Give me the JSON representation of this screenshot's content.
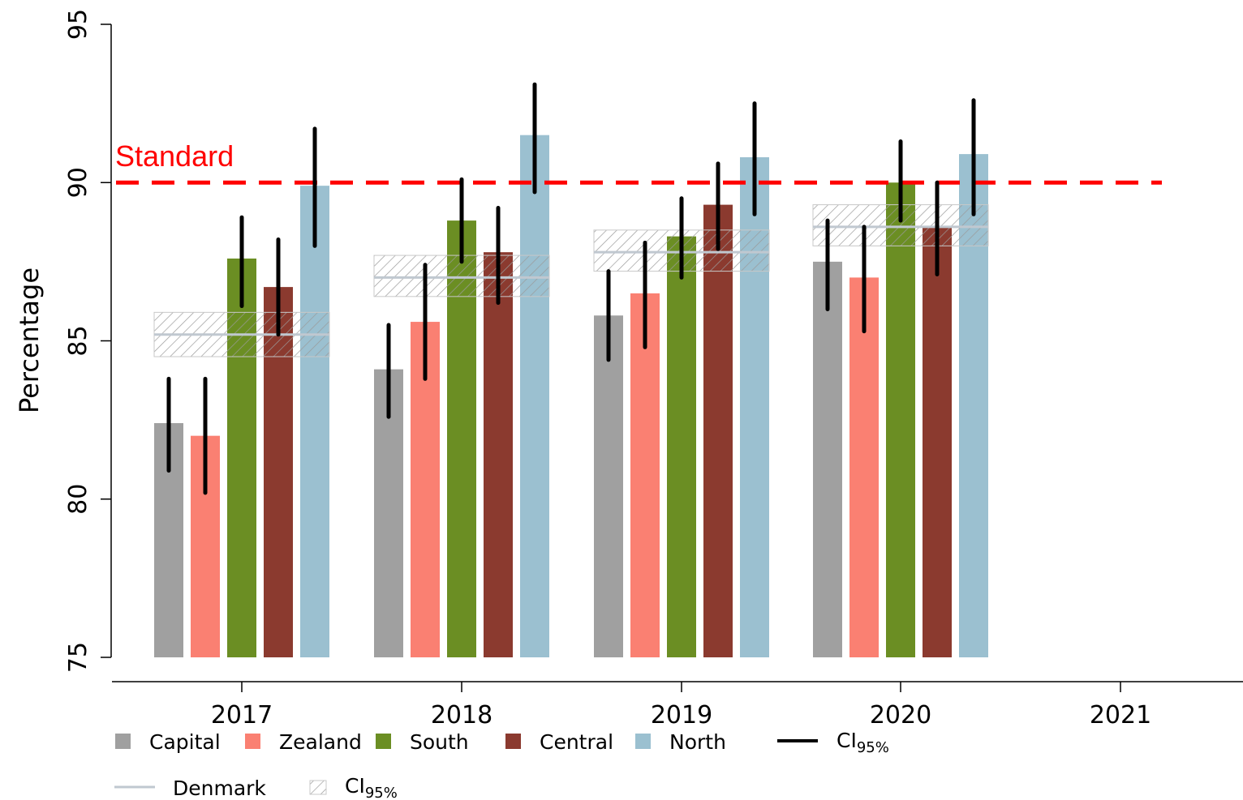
{
  "chart_data": {
    "type": "bar",
    "categories": [
      "2017",
      "2018",
      "2019",
      "2020",
      "2021"
    ],
    "ylabel": "Percentage",
    "xlabel": "",
    "ylim": [
      75,
      95
    ],
    "yticks": [
      75,
      80,
      85,
      90,
      95
    ],
    "series": [
      {
        "name": "Capital",
        "color": "#a0a0a0",
        "values": [
          82.4,
          84.1,
          85.8,
          87.5,
          null
        ],
        "ci_low": [
          80.9,
          82.6,
          84.4,
          86.0,
          null
        ],
        "ci_high": [
          83.8,
          85.5,
          87.2,
          88.8,
          null
        ]
      },
      {
        "name": "Zealand",
        "color": "#fa8072",
        "values": [
          82.0,
          85.6,
          86.5,
          87.0,
          null
        ],
        "ci_low": [
          80.2,
          83.8,
          84.8,
          85.3,
          null
        ],
        "ci_high": [
          83.8,
          87.4,
          88.1,
          88.6,
          null
        ]
      },
      {
        "name": "South",
        "color": "#6b8e23",
        "values": [
          87.6,
          88.8,
          88.3,
          90.0,
          null
        ],
        "ci_low": [
          86.1,
          87.5,
          87.0,
          88.8,
          null
        ],
        "ci_high": [
          88.9,
          90.1,
          89.5,
          91.3,
          null
        ]
      },
      {
        "name": "Central",
        "color": "#8b3a2f",
        "values": [
          86.7,
          87.8,
          89.3,
          88.6,
          null
        ],
        "ci_low": [
          85.2,
          86.2,
          87.9,
          87.1,
          null
        ],
        "ci_high": [
          88.2,
          89.2,
          90.6,
          90.0,
          null
        ]
      },
      {
        "name": "North",
        "color": "#9bc0d0",
        "values": [
          89.9,
          91.5,
          90.8,
          90.9,
          null
        ],
        "ci_low": [
          88.0,
          89.7,
          89.0,
          89.0,
          null
        ],
        "ci_high": [
          91.7,
          93.1,
          92.5,
          92.6,
          null
        ]
      }
    ],
    "denmark": {
      "name": "Denmark",
      "color": "#c0c8d0",
      "values": [
        85.2,
        87.0,
        87.8,
        88.6,
        null
      ],
      "ci_low": [
        84.5,
        86.4,
        87.2,
        88.0,
        null
      ],
      "ci_high": [
        85.9,
        87.7,
        88.5,
        89.3,
        null
      ]
    },
    "standard": {
      "label": "Standard",
      "value": 90,
      "color": "#ff0000"
    },
    "legend": {
      "placement": "bottom",
      "ci_label": "CI",
      "ci_subscript": "95%"
    },
    "grid": false
  }
}
